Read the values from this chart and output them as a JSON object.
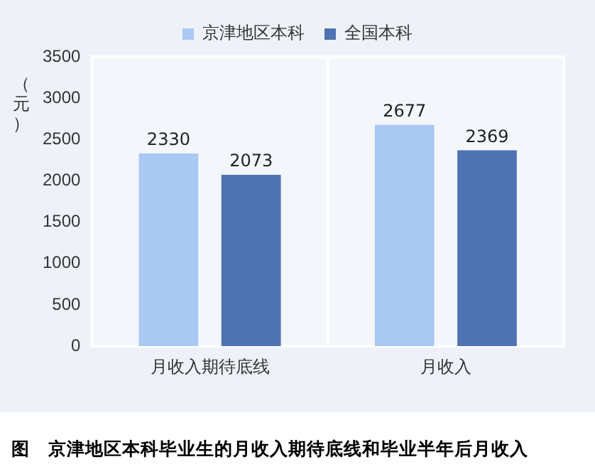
{
  "chart_data": {
    "type": "bar",
    "ylabel": "（元）",
    "annotations": [
      "图   京津地区本科毕业生的月收入期待底线和毕业半年后月收入"
    ],
    "categories": [
      "月收入期待底线",
      "月收入"
    ],
    "series": [
      {
        "name": "京津地区本科",
        "color": "#a9c8f2",
        "values": [
          2330,
          2677
        ]
      },
      {
        "name": "全国本科",
        "color": "#4f72b2",
        "values": [
          2073,
          2369
        ]
      }
    ],
    "ylim": [
      0,
      3500
    ],
    "yticks": [
      0,
      500,
      1000,
      1500,
      2000,
      2500,
      3000,
      3500
    ],
    "grid": false,
    "legend": "top",
    "data_labels": true
  }
}
